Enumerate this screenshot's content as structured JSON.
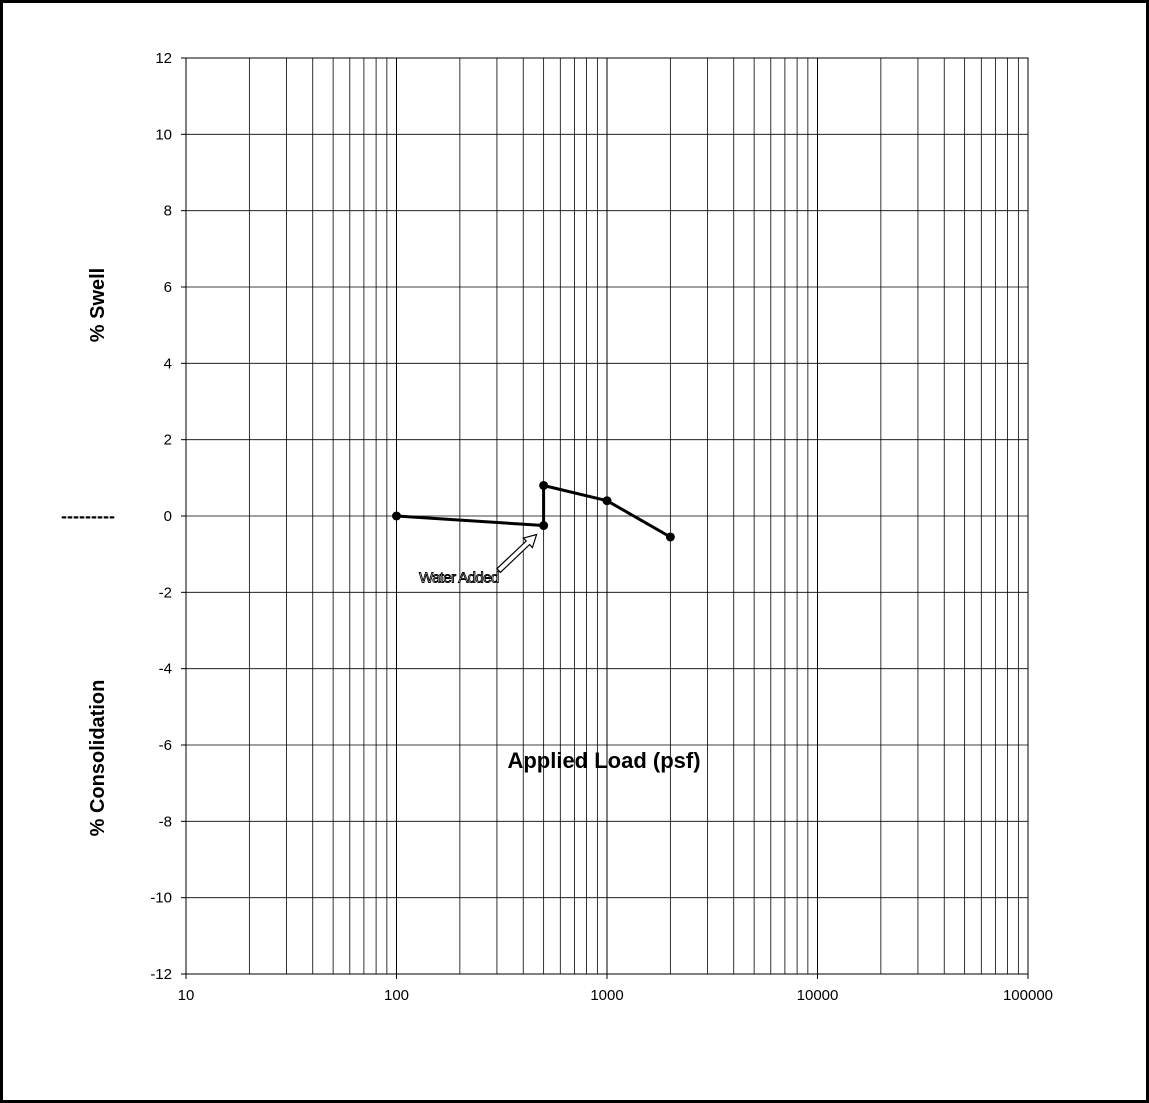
{
  "chart_data": {
    "type": "line",
    "xscale": "log",
    "xlim": [
      10,
      100000
    ],
    "ylim": [
      -12,
      12
    ],
    "xticks": [
      "10",
      "100",
      "1000",
      "10000",
      "100000"
    ],
    "yticks": [
      "12",
      "10",
      "8",
      "6",
      "4",
      "2",
      "0",
      "-2",
      "-4",
      "-6",
      "-8",
      "-10",
      "-12"
    ],
    "xlabel": "Applied Load (psf)",
    "ylabel_top": "% Swell",
    "ylabel_bottom": "% Consolidation",
    "zero_marker": "---------",
    "grid": true,
    "series": [
      {
        "x": [
          100,
          500,
          500,
          1000,
          2000
        ],
        "y": [
          0.0,
          -0.25,
          0.8,
          0.4,
          -0.55
        ]
      }
    ],
    "annotation": {
      "text": "Water Added",
      "target_x": 500,
      "target_y": -0.25
    },
    "colors": {
      "line": "#000000",
      "grid": "#000000",
      "frame": "#000000"
    }
  }
}
